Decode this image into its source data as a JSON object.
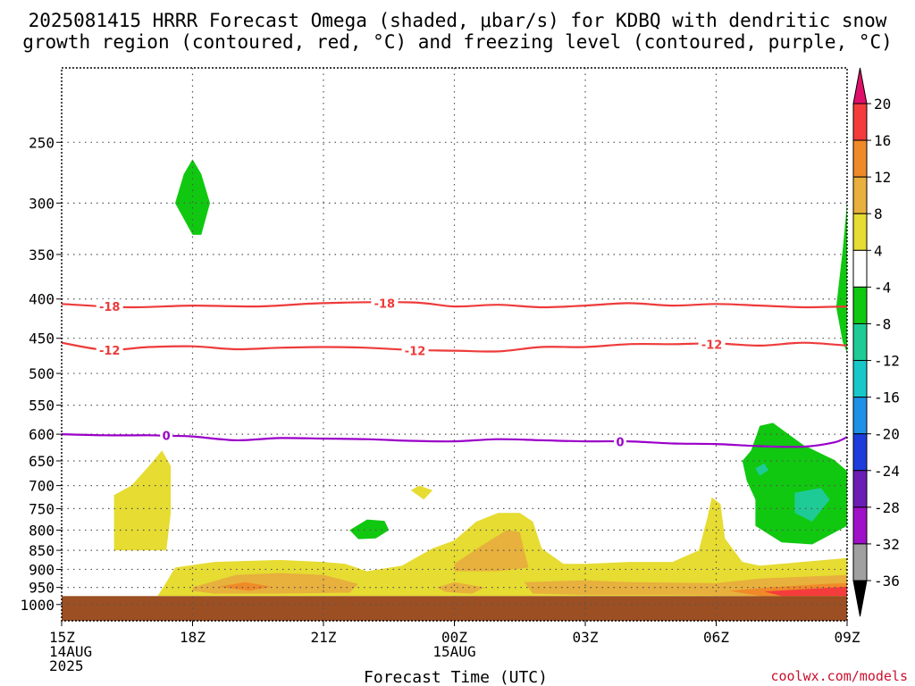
{
  "chart_data": {
    "type": "time-height-contour",
    "title_line1": "2025081415 HRRR Forecast Omega (shaded, μbar/s) for KDBQ with dendritic snow",
    "title_line2": "growth region (contoured, red, °C) and freezing level (contoured, purple, °C)",
    "xlabel": "Forecast Time (UTC)",
    "credit": "coolwx.com/models",
    "x_range": [
      15,
      33
    ],
    "x_ticks": [
      {
        "hour": 15,
        "label": "15Z",
        "sub1": "14AUG",
        "sub2": "2025"
      },
      {
        "hour": 18,
        "label": "18Z",
        "sub1": "",
        "sub2": ""
      },
      {
        "hour": 21,
        "label": "21Z",
        "sub1": "",
        "sub2": ""
      },
      {
        "hour": 24,
        "label": "00Z",
        "sub1": "15AUG",
        "sub2": ""
      },
      {
        "hour": 27,
        "label": "03Z",
        "sub1": "",
        "sub2": ""
      },
      {
        "hour": 30,
        "label": "06Z",
        "sub1": "",
        "sub2": ""
      },
      {
        "hour": 33,
        "label": "09Z",
        "sub1": "",
        "sub2": ""
      }
    ],
    "y_axis": {
      "scale": "log-pressure",
      "range_hpa": [
        1050,
        200
      ],
      "ticks": [
        250,
        300,
        350,
        400,
        450,
        500,
        550,
        600,
        650,
        700,
        750,
        800,
        850,
        900,
        950,
        1000
      ]
    },
    "ground_level_hpa": 975,
    "ground_color": "#9b4f23",
    "colorbar": {
      "levels": [
        20,
        16,
        12,
        8,
        4,
        -4,
        -8,
        -12,
        -16,
        -20,
        -24,
        -28,
        -32,
        -36
      ],
      "colors": [
        "#e0106a",
        "#f53c3c",
        "#f08a28",
        "#e8b03c",
        "#e6dc32",
        "#ffffff",
        "#10c810",
        "#1ecb96",
        "#18c8c8",
        "#1e90e6",
        "#1e3cdc",
        "#6a1eb4",
        "#a010c8",
        "#a0a0a0",
        "#000000"
      ]
    },
    "contours": [
      {
        "name": "-18",
        "color": "#ee3b3b",
        "points": [
          [
            15,
            406
          ],
          [
            16.5,
            410
          ],
          [
            18,
            408
          ],
          [
            19.5,
            409
          ],
          [
            21,
            405
          ],
          [
            23,
            404
          ],
          [
            24,
            409
          ],
          [
            25,
            407
          ],
          [
            26,
            410
          ],
          [
            27,
            408
          ],
          [
            28,
            405
          ],
          [
            29,
            408
          ],
          [
            30,
            406
          ],
          [
            31,
            408
          ],
          [
            32,
            410
          ],
          [
            33,
            409
          ]
        ],
        "labels": [
          [
            16.1,
            409
          ],
          [
            22.4,
            405
          ]
        ]
      },
      {
        "name": "-12",
        "color": "#ee3b3b",
        "points": [
          [
            15,
            456
          ],
          [
            16,
            466
          ],
          [
            17,
            462
          ],
          [
            18,
            461
          ],
          [
            19,
            465
          ],
          [
            20,
            463
          ],
          [
            21,
            462
          ],
          [
            22,
            463
          ],
          [
            23,
            466
          ],
          [
            24,
            467
          ],
          [
            25,
            468
          ],
          [
            26,
            462
          ],
          [
            27,
            462
          ],
          [
            28,
            458
          ],
          [
            29,
            458
          ],
          [
            30,
            457
          ],
          [
            31,
            460
          ],
          [
            32,
            456
          ],
          [
            33,
            460
          ]
        ],
        "labels": [
          [
            16.1,
            466
          ],
          [
            23.1,
            467
          ],
          [
            29.9,
            458
          ]
        ]
      },
      {
        "name": "0",
        "color": "#9a00c8",
        "points": [
          [
            15,
            600
          ],
          [
            16,
            602
          ],
          [
            17,
            602
          ],
          [
            17.5,
            603
          ],
          [
            18,
            604
          ],
          [
            19,
            611
          ],
          [
            20,
            607
          ],
          [
            21,
            608
          ],
          [
            22,
            609
          ],
          [
            23,
            612
          ],
          [
            24,
            613
          ],
          [
            25,
            609
          ],
          [
            26,
            611
          ],
          [
            27,
            613
          ],
          [
            28,
            613
          ],
          [
            29,
            617
          ],
          [
            30,
            618
          ],
          [
            31,
            622
          ],
          [
            32,
            623
          ],
          [
            32.7,
            615
          ],
          [
            33,
            605
          ]
        ],
        "labels": [
          [
            17.4,
            602
          ],
          [
            27.8,
            614
          ]
        ]
      }
    ],
    "omega_regions": [
      {
        "value": 8,
        "color": "#e6dc32",
        "points": [
          [
            16.2,
            720
          ],
          [
            16.6,
            700
          ],
          [
            17.0,
            660
          ],
          [
            17.3,
            630
          ],
          [
            17.5,
            660
          ],
          [
            17.5,
            760
          ],
          [
            17.4,
            850
          ],
          [
            16.2,
            850
          ],
          [
            16.2,
            770
          ]
        ]
      },
      {
        "value": 8,
        "color": "#e6dc32",
        "points": [
          [
            23.2,
            700
          ],
          [
            23.5,
            710
          ],
          [
            23.3,
            730
          ],
          [
            23.0,
            710
          ]
        ]
      },
      {
        "value": 8,
        "color": "#e6dc32",
        "points": [
          [
            17.2,
            975
          ],
          [
            17.4,
            935
          ],
          [
            17.6,
            895
          ],
          [
            18.5,
            880
          ],
          [
            20,
            875
          ],
          [
            21,
            880
          ],
          [
            21.5,
            885
          ],
          [
            22,
            905
          ],
          [
            22.8,
            890
          ],
          [
            23.5,
            845
          ],
          [
            24,
            825
          ],
          [
            24.5,
            780
          ],
          [
            25,
            760
          ],
          [
            25.5,
            760
          ],
          [
            25.8,
            780
          ],
          [
            26,
            845
          ],
          [
            26.5,
            885
          ],
          [
            27,
            885
          ],
          [
            28,
            880
          ],
          [
            29,
            880
          ],
          [
            29.6,
            850
          ],
          [
            29.8,
            770
          ],
          [
            29.9,
            725
          ],
          [
            30.1,
            740
          ],
          [
            30.2,
            820
          ],
          [
            30.6,
            880
          ],
          [
            31,
            890
          ],
          [
            33,
            870
          ],
          [
            33,
            975
          ]
        ]
      },
      {
        "value": 12,
        "color": "#e8b03c",
        "points": [
          [
            18.0,
            950
          ],
          [
            19,
            915
          ],
          [
            20,
            910
          ],
          [
            21,
            915
          ],
          [
            21.8,
            940
          ],
          [
            21.6,
            965
          ],
          [
            20,
            968
          ],
          [
            18.5,
            968
          ],
          [
            18.0,
            960
          ]
        ]
      },
      {
        "value": 12,
        "color": "#e8b03c",
        "points": [
          [
            24,
            885
          ],
          [
            24.6,
            840
          ],
          [
            25.2,
            800
          ],
          [
            25.5,
            805
          ],
          [
            25.6,
            850
          ],
          [
            25.7,
            895
          ],
          [
            25,
            905
          ],
          [
            24,
            905
          ]
        ]
      },
      {
        "value": 12,
        "color": "#e8b03c",
        "points": [
          [
            23.6,
            950
          ],
          [
            24,
            935
          ],
          [
            24.7,
            950
          ],
          [
            24.4,
            968
          ],
          [
            23.8,
            963
          ]
        ]
      },
      {
        "value": 12,
        "color": "#e8b03c",
        "points": [
          [
            25.6,
            935
          ],
          [
            27,
            930
          ],
          [
            28,
            935
          ],
          [
            30,
            938
          ],
          [
            31,
            925
          ],
          [
            32,
            920
          ],
          [
            33,
            915
          ],
          [
            33,
            975
          ],
          [
            31,
            975
          ],
          [
            29,
            972
          ],
          [
            27,
            972
          ],
          [
            25.8,
            968
          ]
        ]
      },
      {
        "value": 16,
        "color": "#f08a28",
        "points": [
          [
            18.6,
            948
          ],
          [
            19.2,
            935
          ],
          [
            19.8,
            948
          ],
          [
            19.3,
            960
          ]
        ]
      },
      {
        "value": 16,
        "color": "#f08a28",
        "points": [
          [
            30.3,
            960
          ],
          [
            31.2,
            950
          ],
          [
            32.5,
            940
          ],
          [
            33,
            938
          ],
          [
            33,
            975
          ],
          [
            31,
            975
          ]
        ]
      },
      {
        "value": 20,
        "color": "#f53c3c",
        "points": [
          [
            31.1,
            962
          ],
          [
            32,
            955
          ],
          [
            33,
            948
          ],
          [
            33,
            975
          ],
          [
            31.5,
            975
          ]
        ]
      },
      {
        "value": -4,
        "color": "#10c810",
        "points": [
          [
            18.0,
            330
          ],
          [
            17.6,
            300
          ],
          [
            17.8,
            275
          ],
          [
            18.0,
            263
          ],
          [
            18.2,
            275
          ],
          [
            18.4,
            300
          ],
          [
            18.2,
            330
          ]
        ]
      },
      {
        "value": -4,
        "color": "#10c810",
        "points": [
          [
            21.6,
            800
          ],
          [
            22.0,
            775
          ],
          [
            22.4,
            778
          ],
          [
            22.5,
            800
          ],
          [
            22.2,
            820
          ],
          [
            21.8,
            822
          ]
        ]
      },
      {
        "value": -4,
        "color": "#10c810",
        "points": [
          [
            30.6,
            650
          ],
          [
            30.8,
            630
          ],
          [
            31.0,
            585
          ],
          [
            31.3,
            580
          ],
          [
            32,
            620
          ],
          [
            32.7,
            648
          ],
          [
            33,
            670
          ],
          [
            33,
            790
          ],
          [
            32.2,
            835
          ],
          [
            31.5,
            830
          ],
          [
            30.9,
            790
          ],
          [
            30.9,
            730
          ],
          [
            30.7,
            690
          ]
        ]
      },
      {
        "value": -4,
        "color": "#10c810",
        "points": [
          [
            33,
            300
          ],
          [
            32.9,
            345
          ],
          [
            32.75,
            410
          ],
          [
            32.9,
            455
          ],
          [
            33,
            470
          ]
        ]
      },
      {
        "value": -8,
        "color": "#1ecb96",
        "points": [
          [
            31.8,
            715
          ],
          [
            32.4,
            705
          ],
          [
            32.6,
            730
          ],
          [
            32.2,
            780
          ],
          [
            31.8,
            760
          ]
        ]
      },
      {
        "value": -8,
        "color": "#1ecb96",
        "points": [
          [
            30.9,
            665
          ],
          [
            31.1,
            655
          ],
          [
            31.2,
            668
          ],
          [
            31.0,
            680
          ]
        ]
      }
    ]
  }
}
